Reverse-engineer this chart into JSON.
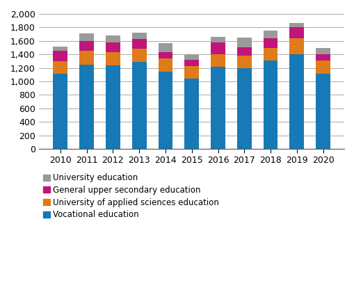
{
  "years": [
    "2010",
    "2011",
    "2012",
    "2013",
    "2014",
    "2015",
    "2016",
    "2017",
    "2018",
    "2019",
    "2020"
  ],
  "vocational": [
    1110,
    1250,
    1240,
    1290,
    1145,
    1040,
    1215,
    1195,
    1310,
    1400,
    1110
  ],
  "applied_sciences": [
    190,
    200,
    195,
    190,
    195,
    190,
    185,
    185,
    180,
    240,
    200
  ],
  "upper_secondary": [
    155,
    145,
    145,
    145,
    95,
    95,
    175,
    125,
    150,
    165,
    90
  ],
  "university": [
    60,
    120,
    105,
    100,
    130,
    80,
    90,
    145,
    110,
    60,
    95
  ],
  "colors": {
    "vocational": "#1779b5",
    "applied_sciences": "#e07b1a",
    "upper_secondary": "#c0157a",
    "university": "#9a9a9a"
  },
  "ylim": [
    0,
    2000
  ],
  "yticks": [
    0,
    200,
    400,
    600,
    800,
    1000,
    1200,
    1400,
    1600,
    1800,
    2000
  ],
  "legend_labels": [
    "University education",
    "General upper secondary education",
    "University of applied sciences education",
    "Vocational education"
  ],
  "bar_width": 0.55
}
